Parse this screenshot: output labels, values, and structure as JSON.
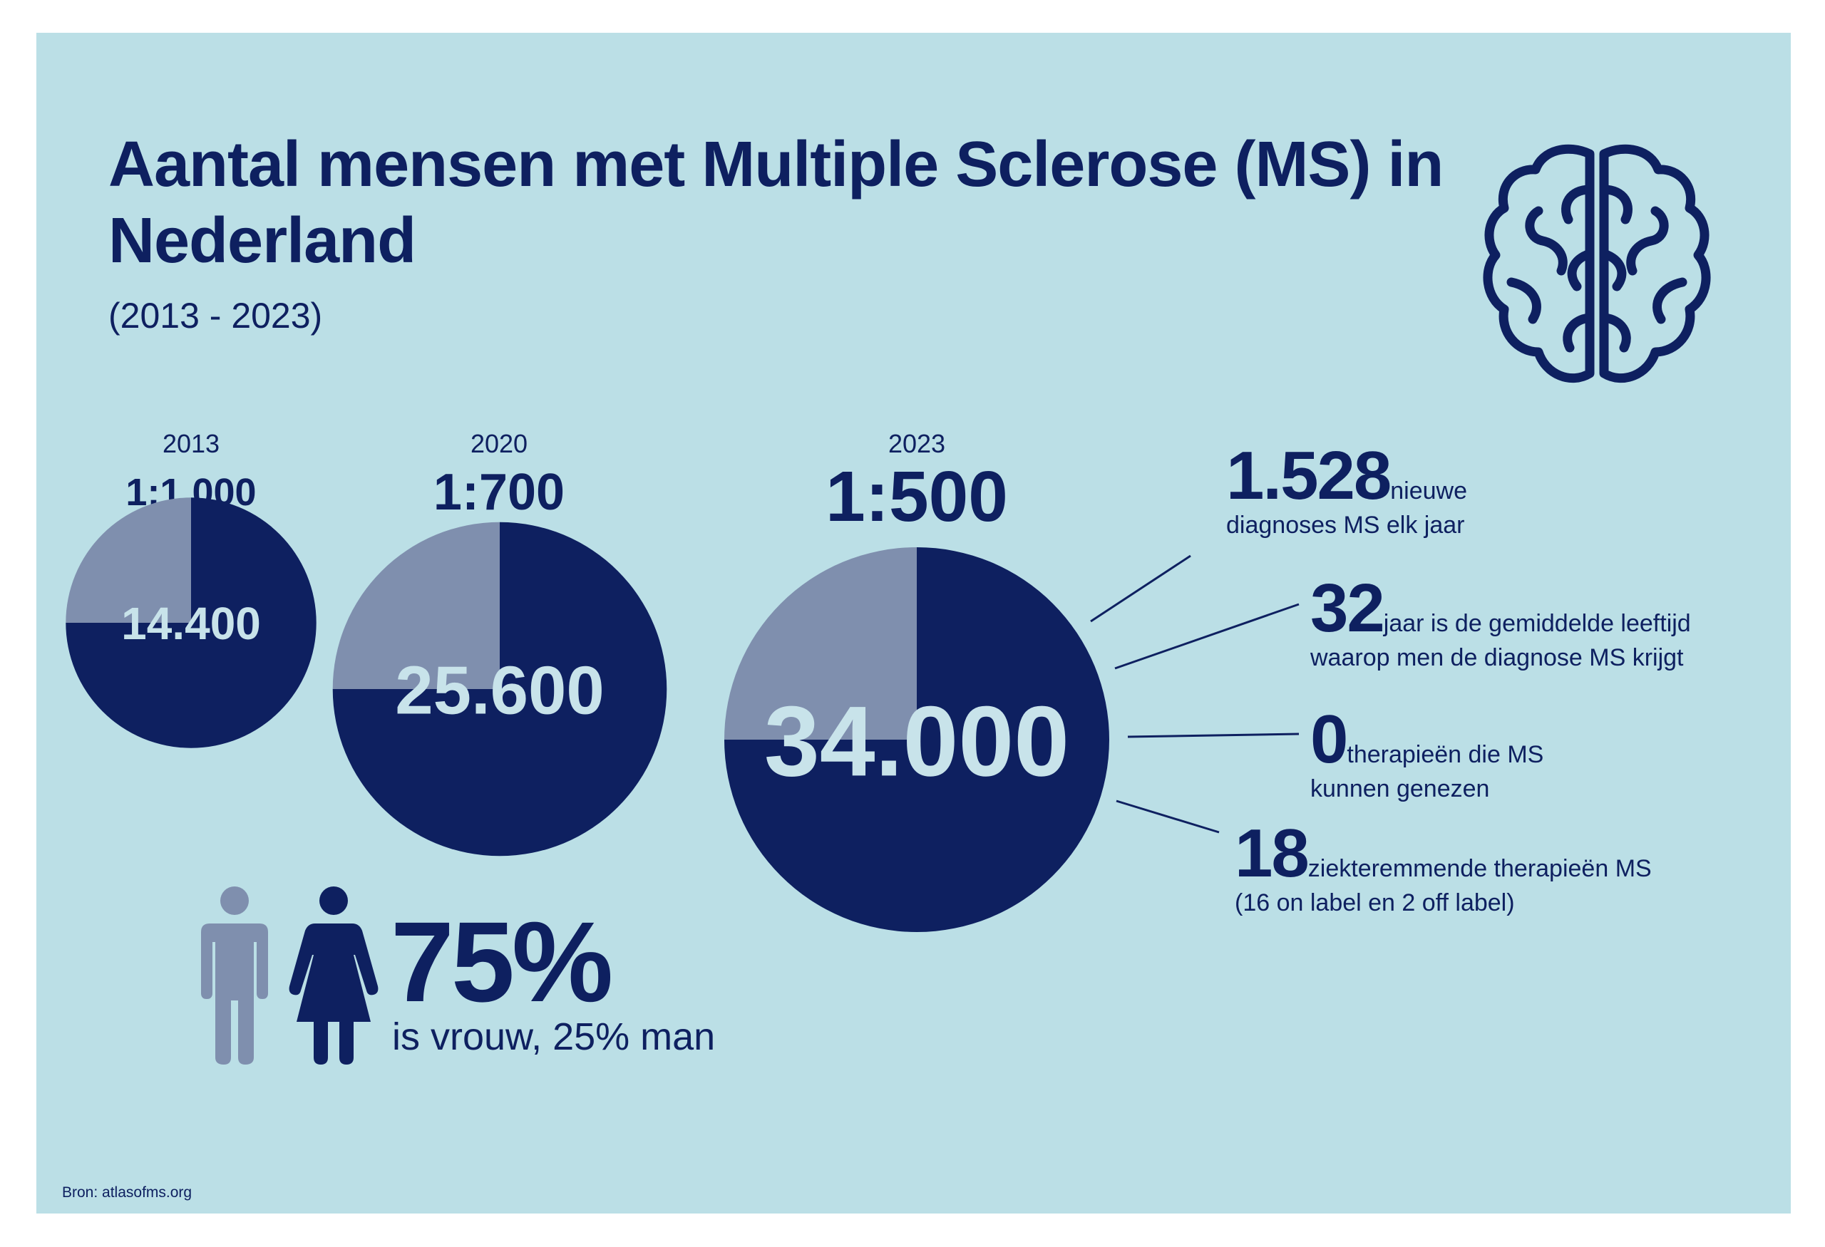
{
  "title": "Aantal mensen met Multiple Sclerose (MS) in Nederland",
  "subtitle": "(2013 - 2023)",
  "colors": {
    "background": "#bbdfe6",
    "navy": "#0e2060",
    "grey_blue": "#7f8fae",
    "label": "#c8e3ea"
  },
  "icons": {
    "brain": "brain-icon",
    "man": "man-icon",
    "woman": "woman-icon"
  },
  "chart_data": {
    "type": "pie",
    "charts": [
      {
        "year": "2013",
        "ratio": "1:1.000",
        "count_label": "14.400",
        "count": 14400,
        "slices": [
          {
            "share": 0.75,
            "color": "#0e2060"
          },
          {
            "share": 0.25,
            "color": "#7f8fae"
          }
        ]
      },
      {
        "year": "2020",
        "ratio": "1:700",
        "count_label": "25.600",
        "count": 25600,
        "slices": [
          {
            "share": 0.75,
            "color": "#0e2060"
          },
          {
            "share": 0.25,
            "color": "#7f8fae"
          }
        ]
      },
      {
        "year": "2023",
        "ratio": "1:500",
        "count_label": "34.000",
        "count": 34000,
        "slices": [
          {
            "share": 0.75,
            "color": "#0e2060"
          },
          {
            "share": 0.25,
            "color": "#7f8fae"
          }
        ]
      }
    ]
  },
  "stats": [
    {
      "number": "1.528",
      "inline": "nieuwe",
      "line2": "diagnoses MS elk jaar"
    },
    {
      "number": "32",
      "inline": "jaar is de gemiddelde leeftijd",
      "line2": "waarop men de diagnose MS krijgt"
    },
    {
      "number": "0",
      "inline": "therapieën die MS",
      "line2": "kunnen genezen"
    },
    {
      "number": "18",
      "inline": "ziekteremmende therapieën MS",
      "line2": "(16 on label en 2 off label)"
    }
  ],
  "gender": {
    "percentage": "75%",
    "text": "is vrouw, 25% man"
  },
  "source": "Bron: atlasofms.org"
}
